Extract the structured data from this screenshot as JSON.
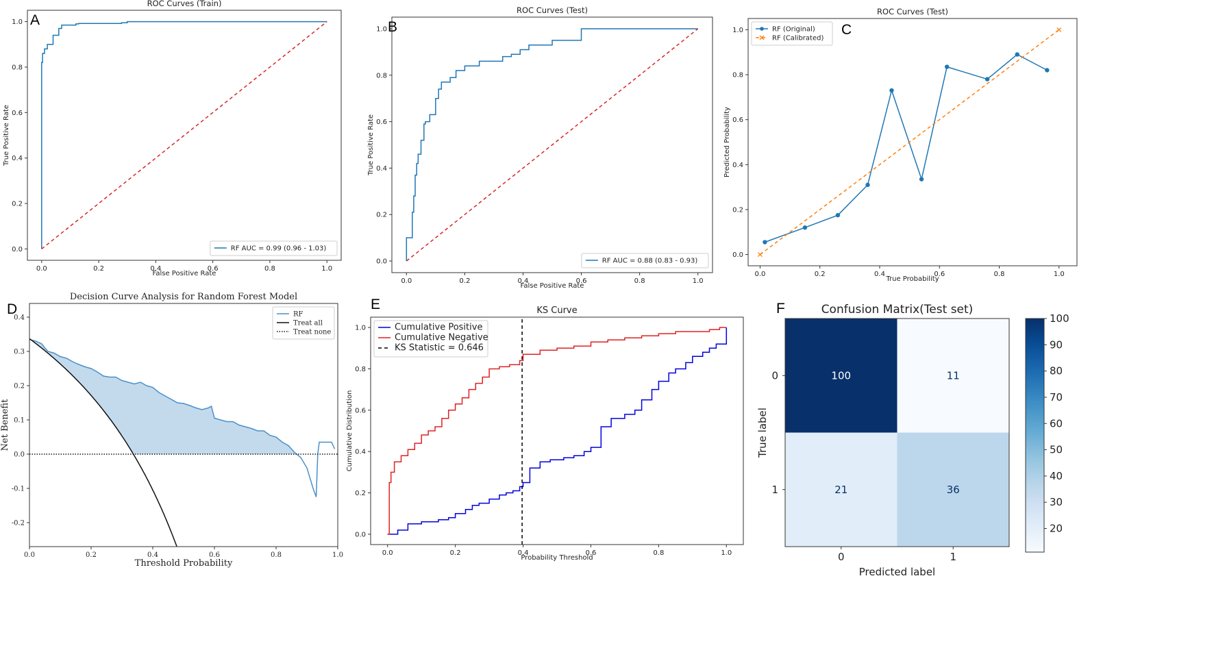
{
  "chart_data": [
    {
      "id": "A",
      "type": "line",
      "panel_label": "A",
      "title": "ROC Curves (Train)",
      "xlabel": "False Positive Rate",
      "ylabel": "True Positive Rate",
      "xlim": [
        -0.05,
        1.05
      ],
      "ylim": [
        -0.05,
        1.05
      ],
      "xticks": [
        0.0,
        0.2,
        0.4,
        0.6,
        0.8,
        1.0
      ],
      "yticks": [
        0.0,
        0.2,
        0.4,
        0.6,
        0.8,
        1.0
      ],
      "tick_format": 1,
      "grid": false,
      "legend_position": "lower-right",
      "series": [
        {
          "name": "RF AUC = 0.99 (0.96 - 1.03)",
          "color": "#1f77b4",
          "dash": "",
          "step": true,
          "x": [
            0,
            0,
            0.003,
            0.003,
            0.01,
            0.02,
            0.04,
            0.06,
            0.07,
            0.1,
            0.12,
            0.13,
            0.28,
            0.3,
            1.0
          ],
          "y": [
            0,
            0.82,
            0.82,
            0.86,
            0.88,
            0.9,
            0.94,
            0.97,
            0.985,
            0.985,
            0.99,
            0.992,
            0.995,
            1.0,
            1.0
          ]
        },
        {
          "name": "",
          "color": "#d62728",
          "dash": "5,4",
          "x": [
            0,
            1
          ],
          "y": [
            0,
            1
          ]
        }
      ]
    },
    {
      "id": "B",
      "type": "line",
      "panel_label": "B",
      "title": "ROC Curves (Test)",
      "xlabel": "False Positive Rate",
      "ylabel": "True Positive Rate",
      "xlim": [
        -0.05,
        1.05
      ],
      "ylim": [
        -0.05,
        1.05
      ],
      "xticks": [
        0.0,
        0.2,
        0.4,
        0.6,
        0.8,
        1.0
      ],
      "yticks": [
        0.0,
        0.2,
        0.4,
        0.6,
        0.8,
        1.0
      ],
      "tick_format": 1,
      "grid": false,
      "legend_position": "lower-right",
      "series": [
        {
          "name": "RF AUC = 0.88 (0.83 - 0.93)",
          "color": "#1f77b4",
          "dash": "",
          "step": true,
          "x": [
            0,
            0,
            0.02,
            0.02,
            0.025,
            0.03,
            0.035,
            0.04,
            0.05,
            0.06,
            0.065,
            0.08,
            0.1,
            0.11,
            0.12,
            0.15,
            0.17,
            0.2,
            0.25,
            0.3,
            0.33,
            0.36,
            0.39,
            0.42,
            0.45,
            0.5,
            0.59,
            0.6,
            1.0
          ],
          "y": [
            0,
            0.1,
            0.1,
            0.21,
            0.28,
            0.37,
            0.42,
            0.46,
            0.52,
            0.59,
            0.6,
            0.63,
            0.7,
            0.74,
            0.77,
            0.79,
            0.82,
            0.84,
            0.86,
            0.86,
            0.88,
            0.89,
            0.91,
            0.93,
            0.93,
            0.95,
            0.95,
            1.0,
            1.0
          ]
        },
        {
          "name": "",
          "color": "#d62728",
          "dash": "5,4",
          "x": [
            0,
            1
          ],
          "y": [
            0,
            1
          ]
        }
      ]
    },
    {
      "id": "C",
      "type": "line",
      "panel_label": "C",
      "title": "ROC Curves (Test)",
      "xlabel": "True Probability",
      "ylabel": "Predicted Probability",
      "xlim": [
        -0.04,
        1.06
      ],
      "ylim": [
        -0.05,
        1.05
      ],
      "xticks": [
        0.0,
        0.2,
        0.4,
        0.6,
        0.8,
        1.0
      ],
      "yticks": [
        0.0,
        0.2,
        0.4,
        0.6,
        0.8,
        1.0
      ],
      "tick_format": 1,
      "grid": false,
      "legend_position": "upper-left",
      "series": [
        {
          "name": "RF (Original)",
          "color": "#1f77b4",
          "dash": "",
          "marker": "o",
          "x": [
            0.016,
            0.15,
            0.26,
            0.36,
            0.44,
            0.54,
            0.625,
            0.76,
            0.86,
            0.96
          ],
          "y": [
            0.055,
            0.12,
            0.175,
            0.31,
            0.73,
            0.335,
            0.835,
            0.78,
            0.89,
            0.82
          ]
        },
        {
          "name": "RF (Calibrated)",
          "color": "#ff7f0e",
          "dash": "5,4",
          "marker": "x",
          "x": [
            0,
            1
          ],
          "y": [
            0,
            1
          ]
        }
      ]
    },
    {
      "id": "D",
      "type": "area",
      "panel_label": "D",
      "title": "Decision Curve Analysis for Random Forest Model",
      "xlabel": "Threshold Probability",
      "ylabel": "Net Benefit",
      "xlim": [
        0.0,
        1.0
      ],
      "ylim": [
        -0.27,
        0.44
      ],
      "xticks": [
        0.0,
        0.2,
        0.4,
        0.6,
        0.8,
        1.0
      ],
      "yticks": [
        -0.2,
        -0.1,
        0.0,
        0.1,
        0.2,
        0.3,
        0.4
      ],
      "tick_format": 1,
      "grid": false,
      "legend_position": "top-right",
      "fill": {
        "color": "#b9d4ea",
        "between": [
          "RF",
          "Treat all"
        ],
        "x_min": 0.0,
        "x_max": 0.87
      },
      "series": [
        {
          "name": "RF",
          "color": "#4a90c8",
          "dash": "",
          "x": [
            0.0,
            0.02,
            0.04,
            0.05,
            0.06,
            0.08,
            0.1,
            0.12,
            0.14,
            0.16,
            0.18,
            0.2,
            0.22,
            0.24,
            0.26,
            0.28,
            0.3,
            0.32,
            0.34,
            0.36,
            0.38,
            0.4,
            0.42,
            0.44,
            0.46,
            0.48,
            0.5,
            0.52,
            0.54,
            0.56,
            0.58,
            0.59,
            0.6,
            0.62,
            0.64,
            0.66,
            0.68,
            0.7,
            0.72,
            0.74,
            0.76,
            0.78,
            0.8,
            0.82,
            0.84,
            0.86,
            0.88,
            0.9,
            0.92,
            0.93,
            0.935,
            0.94,
            0.96,
            0.98,
            0.99
          ],
          "y": [
            0.335,
            0.33,
            0.322,
            0.31,
            0.3,
            0.295,
            0.285,
            0.28,
            0.27,
            0.262,
            0.255,
            0.25,
            0.24,
            0.228,
            0.225,
            0.225,
            0.215,
            0.21,
            0.205,
            0.21,
            0.2,
            0.195,
            0.18,
            0.17,
            0.16,
            0.15,
            0.148,
            0.142,
            0.135,
            0.13,
            0.135,
            0.14,
            0.105,
            0.1,
            0.095,
            0.095,
            0.085,
            0.08,
            0.075,
            0.068,
            0.068,
            0.055,
            0.05,
            0.035,
            0.025,
            0.005,
            -0.01,
            -0.04,
            -0.1,
            -0.125,
            0.0,
            0.035,
            0.035,
            0.035,
            0.015
          ]
        },
        {
          "name": "Treat all",
          "color": "#111111",
          "dash": "",
          "fn": "treat_all",
          "prevalence": 0.337
        },
        {
          "name": "Treat none",
          "color": "#111111",
          "dash": "1.5,2",
          "x": [
            0,
            1
          ],
          "y": [
            0,
            0
          ]
        }
      ]
    },
    {
      "id": "E",
      "type": "line",
      "panel_label": "E",
      "title": "KS Curve",
      "xlabel": "Probability Threshold",
      "ylabel": "Cumulative Distribution",
      "xlim": [
        -0.05,
        1.05
      ],
      "ylim": [
        -0.05,
        1.05
      ],
      "xticks": [
        0.0,
        0.2,
        0.4,
        0.6,
        0.8,
        1.0
      ],
      "yticks": [
        0.0,
        0.2,
        0.4,
        0.6,
        0.8,
        1.0
      ],
      "tick_format": 1,
      "grid": false,
      "legend_position": "upper-left",
      "series": [
        {
          "name": "Cumulative Positive",
          "color": "#0000dd",
          "dash": "",
          "step": true,
          "x": [
            0,
            0.03,
            0.06,
            0.1,
            0.15,
            0.18,
            0.2,
            0.23,
            0.25,
            0.27,
            0.3,
            0.33,
            0.35,
            0.37,
            0.39,
            0.4,
            0.42,
            0.45,
            0.48,
            0.52,
            0.55,
            0.58,
            0.6,
            0.63,
            0.66,
            0.7,
            0.73,
            0.75,
            0.78,
            0.8,
            0.83,
            0.85,
            0.88,
            0.9,
            0.93,
            0.95,
            0.97,
            1.0
          ],
          "y": [
            0,
            0.02,
            0.05,
            0.06,
            0.07,
            0.08,
            0.1,
            0.12,
            0.14,
            0.15,
            0.17,
            0.19,
            0.2,
            0.21,
            0.23,
            0.25,
            0.32,
            0.35,
            0.36,
            0.37,
            0.38,
            0.4,
            0.42,
            0.52,
            0.56,
            0.58,
            0.6,
            0.65,
            0.7,
            0.74,
            0.78,
            0.8,
            0.83,
            0.86,
            0.88,
            0.9,
            0.92,
            1.0
          ]
        },
        {
          "name": "Cumulative Negative",
          "color": "#dd2222",
          "dash": "",
          "step": true,
          "x": [
            0,
            0.005,
            0.01,
            0.02,
            0.04,
            0.06,
            0.08,
            0.1,
            0.12,
            0.14,
            0.16,
            0.18,
            0.2,
            0.22,
            0.24,
            0.26,
            0.28,
            0.3,
            0.33,
            0.36,
            0.39,
            0.4,
            0.45,
            0.5,
            0.55,
            0.6,
            0.65,
            0.7,
            0.75,
            0.8,
            0.85,
            0.9,
            0.95,
            0.98,
            1.0
          ],
          "y": [
            0,
            0.25,
            0.3,
            0.35,
            0.38,
            0.41,
            0.44,
            0.48,
            0.5,
            0.52,
            0.56,
            0.6,
            0.63,
            0.66,
            0.7,
            0.73,
            0.76,
            0.8,
            0.81,
            0.82,
            0.84,
            0.87,
            0.89,
            0.9,
            0.91,
            0.93,
            0.94,
            0.95,
            0.96,
            0.97,
            0.98,
            0.98,
            0.99,
            1.0,
            1.0
          ]
        },
        {
          "name": "KS Statistic = 0.646",
          "color": "#000000",
          "dash": "5,4",
          "x": [
            0.397,
            0.397
          ],
          "y": [
            -0.05,
            1.05
          ]
        }
      ]
    },
    {
      "id": "F",
      "type": "heatmap",
      "panel_label": "F",
      "title": "Confusion Matrix(Test set)",
      "xlabel": "Predicted label",
      "ylabel": "True label",
      "row_labels": [
        "0",
        "1"
      ],
      "col_labels": [
        "0",
        "1"
      ],
      "matrix": [
        [
          100,
          11
        ],
        [
          21,
          36
        ]
      ],
      "colorbar_ticks": [
        20,
        30,
        40,
        50,
        60,
        70,
        80,
        90,
        100
      ],
      "vmin": 11,
      "vmax": 100,
      "colormap": "Blues"
    }
  ]
}
